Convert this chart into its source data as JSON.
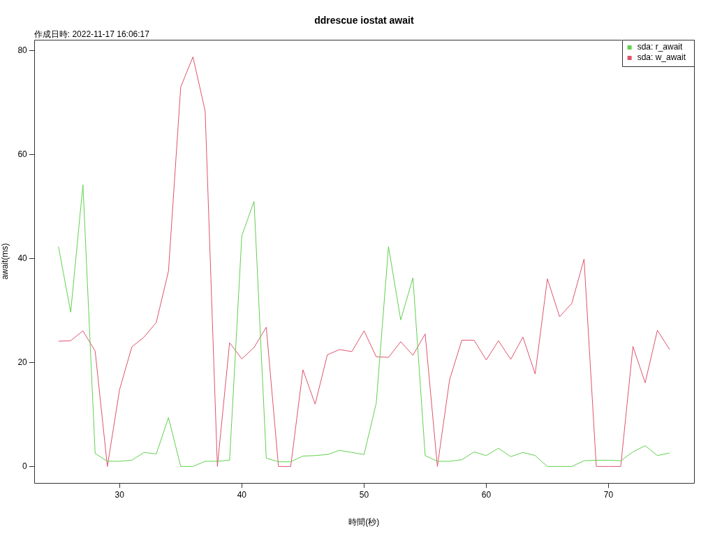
{
  "chart_data": {
    "type": "line",
    "title": "ddrescue iostat await",
    "subtitle": "作成日時: 2022-11-17 16:06:17",
    "xlabel": "時間(秒)",
    "ylabel": "await(ms)",
    "x": [
      25,
      26,
      27,
      28,
      29,
      30,
      31,
      32,
      33,
      34,
      35,
      36,
      37,
      38,
      39,
      40,
      41,
      42,
      43,
      44,
      45,
      46,
      47,
      48,
      49,
      50,
      51,
      52,
      53,
      54,
      55,
      56,
      57,
      58,
      59,
      60,
      61,
      62,
      63,
      64,
      65,
      66,
      67,
      68,
      69,
      70,
      71,
      72,
      73,
      74,
      75
    ],
    "series": [
      {
        "name": "sda: r_await",
        "color": "#61d04f",
        "values": [
          42.3,
          29.7,
          54.2,
          2.5,
          1,
          1,
          1.2,
          2.7,
          2.4,
          9.4,
          0,
          0,
          1,
          1,
          1.2,
          44.4,
          51,
          1.6,
          0.9,
          0.9,
          2,
          2.1,
          2.3,
          3.1,
          2.7,
          2.3,
          12.2,
          42.3,
          28.2,
          36.3,
          2.1,
          1,
          1,
          1.3,
          2.8,
          2.1,
          3.5,
          1.9,
          2.7,
          2.1,
          0,
          0,
          0,
          1.1,
          1.2,
          1.2,
          1.1,
          2.8,
          4,
          2.1,
          2.6
        ]
      },
      {
        "name": "sda: w_await",
        "color": "#df536b",
        "values": [
          24.1,
          24.2,
          26.1,
          22.2,
          0,
          14.8,
          23,
          24.9,
          27.7,
          37.6,
          73,
          78.8,
          68.4,
          0,
          23.8,
          20.7,
          22.9,
          26.8,
          0,
          0,
          18.6,
          12,
          21.5,
          22.5,
          22.1,
          26.1,
          21.1,
          21,
          24,
          21.4,
          25.5,
          0,
          16.7,
          24.3,
          24.3,
          20.5,
          24.2,
          20.6,
          24.9,
          17.8,
          36.1,
          28.8,
          31.4,
          39.9,
          0,
          0,
          0,
          23.1,
          16.1,
          26.2,
          22.5
        ]
      }
    ],
    "xlim": [
      23,
      77
    ],
    "ylim": [
      -3.2,
      82.1
    ],
    "xticks": [
      30,
      40,
      50,
      60,
      70
    ],
    "yticks": [
      0,
      20,
      40,
      60,
      80
    ],
    "grid": false,
    "legend": "top right",
    "marker": "none",
    "line_style": "solid"
  }
}
